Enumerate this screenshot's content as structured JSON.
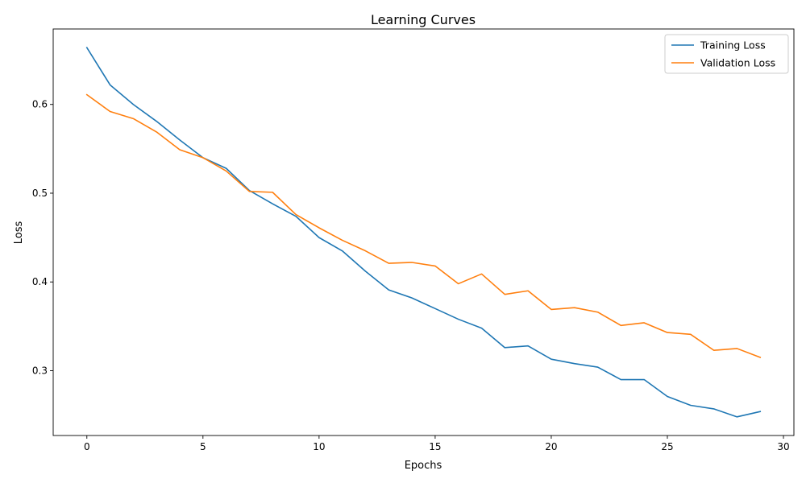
{
  "colors": {
    "training": "#1f77b4",
    "validation": "#ff7f0e",
    "axes": "#000000",
    "legend_border": "#cccccc",
    "background": "#ffffff"
  },
  "chart_data": {
    "type": "line",
    "title": "Learning Curves",
    "xlabel": "Epochs",
    "ylabel": "Loss",
    "xlim": [
      -1.45,
      30.45
    ],
    "ylim": [
      0.227,
      0.685
    ],
    "xticks": [
      0,
      5,
      10,
      15,
      20,
      25,
      30
    ],
    "xtick_labels": [
      "0",
      "5",
      "10",
      "15",
      "20",
      "25",
      "30"
    ],
    "yticks": [
      0.3,
      0.4,
      0.5,
      0.6
    ],
    "ytick_labels": [
      "0.3",
      "0.4",
      "0.5",
      "0.6"
    ],
    "grid": false,
    "legend_position": "top-right",
    "x": [
      0,
      1,
      2,
      3,
      4,
      5,
      6,
      7,
      8,
      9,
      10,
      11,
      12,
      13,
      14,
      15,
      16,
      17,
      18,
      19,
      20,
      21,
      22,
      23,
      24,
      25,
      26,
      27,
      28,
      29
    ],
    "series": [
      {
        "name": "Training Loss",
        "color": "#1f77b4",
        "values": [
          0.664,
          0.622,
          0.6,
          0.581,
          0.56,
          0.54,
          0.528,
          0.503,
          0.488,
          0.474,
          0.45,
          0.435,
          0.412,
          0.391,
          0.382,
          0.37,
          0.358,
          0.348,
          0.326,
          0.328,
          0.313,
          0.308,
          0.304,
          0.29,
          0.29,
          0.271,
          0.261,
          0.257,
          0.248,
          0.254
        ]
      },
      {
        "name": "Validation Loss",
        "color": "#ff7f0e",
        "values": [
          0.611,
          0.592,
          0.584,
          0.569,
          0.549,
          0.54,
          0.525,
          0.502,
          0.501,
          0.476,
          0.461,
          0.447,
          0.435,
          0.421,
          0.422,
          0.418,
          0.398,
          0.409,
          0.386,
          0.39,
          0.369,
          0.371,
          0.366,
          0.351,
          0.354,
          0.343,
          0.341,
          0.323,
          0.325,
          0.315
        ]
      }
    ]
  }
}
